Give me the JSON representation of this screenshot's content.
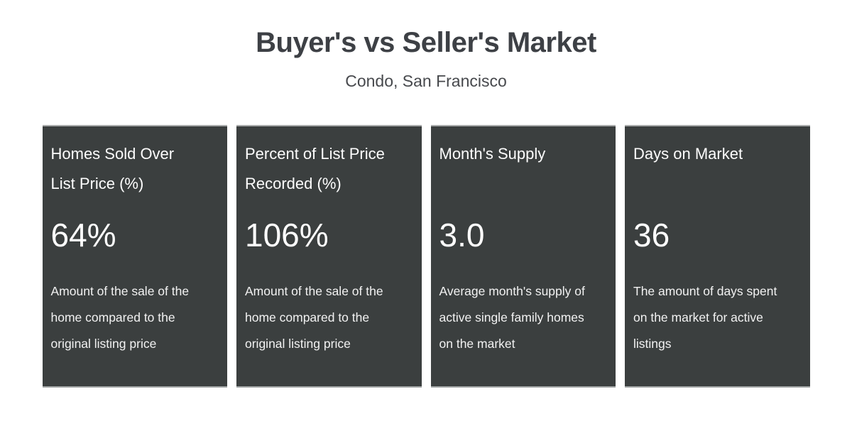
{
  "header": {
    "title": "Buyer's vs Seller's Market",
    "subtitle": "Condo, San Francisco"
  },
  "cards": [
    {
      "title": "Homes Sold Over\nList Price (%)",
      "value": "64%",
      "description": "Amount of the sale of the\nhome compared to the\noriginal listing price"
    },
    {
      "title": "Percent of List Price\nRecorded (%)",
      "value": "106%",
      "description": "Amount of the sale of the\nhome compared to the\noriginal listing price"
    },
    {
      "title": "Month's Supply",
      "value": "3.0",
      "description": "Average month's supply of\nactive single family homes\non the market"
    },
    {
      "title": "Days on Market",
      "value": "36",
      "description": "The amount of days spent\non the market for active\nlistings"
    }
  ],
  "colors": {
    "card_background": "#3b3f3f",
    "card_border": "#a8abab",
    "title_text": "#3d4045",
    "subtitle_text": "#47494d",
    "card_text": "#ffffff",
    "page_background": "#ffffff"
  },
  "chart_data": {
    "type": "table",
    "title": "Buyer's vs Seller's Market",
    "subtitle": "Condo, San Francisco",
    "metrics": [
      {
        "label": "Homes Sold Over List Price (%)",
        "value": 64,
        "display_value": "64%",
        "description": "Amount of the sale of the home compared to the original listing price"
      },
      {
        "label": "Percent of List Price Recorded (%)",
        "value": 106,
        "display_value": "106%",
        "description": "Amount of the sale of the home compared to the original listing price"
      },
      {
        "label": "Month's Supply",
        "value": 3.0,
        "display_value": "3.0",
        "description": "Average month's supply of active single family homes on the market"
      },
      {
        "label": "Days on Market",
        "value": 36,
        "display_value": "36",
        "description": "The amount of days spent on the market for active listings"
      }
    ]
  }
}
